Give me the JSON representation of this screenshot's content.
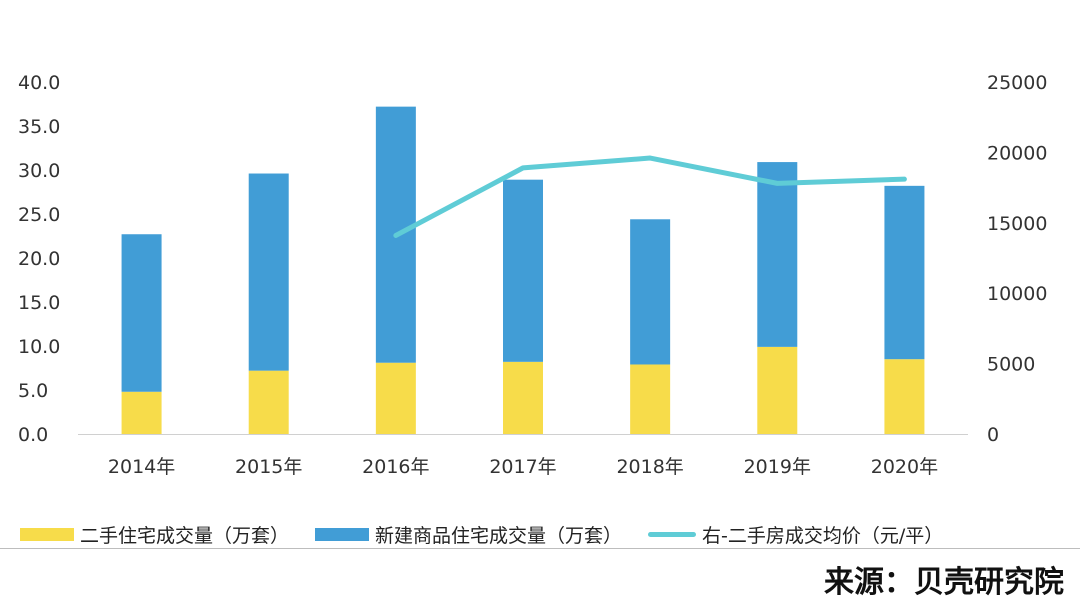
{
  "chart_data": {
    "type": "bar",
    "categories": [
      "2014年",
      "2015年",
      "2016年",
      "2017年",
      "2018年",
      "2019年",
      "2020年"
    ],
    "series": [
      {
        "name": "二手住宅成交量（万套）",
        "type": "bar",
        "axis": "left",
        "stack": "volume",
        "values": [
          4.8,
          7.2,
          8.1,
          8.2,
          7.9,
          9.9,
          8.5
        ]
      },
      {
        "name": "新建商品住宅成交量（万套）",
        "type": "bar",
        "axis": "left",
        "stack": "volume",
        "values": [
          17.9,
          22.4,
          29.1,
          20.7,
          16.5,
          21.0,
          19.7
        ]
      },
      {
        "name": "右-二手房成交均价（元/平）",
        "type": "line",
        "axis": "right",
        "values": [
          null,
          null,
          14100,
          18900,
          19600,
          17800,
          18100
        ]
      }
    ],
    "y_left": {
      "ticks": [
        "0.0",
        "5.0",
        "10.0",
        "15.0",
        "20.0",
        "25.0",
        "30.0",
        "35.0",
        "40.0"
      ],
      "ylim": [
        0,
        40
      ]
    },
    "y_right": {
      "ticks": [
        "0",
        "5000",
        "10000",
        "15000",
        "20000",
        "25000"
      ],
      "ylim": [
        0,
        25000
      ]
    },
    "grid": false,
    "legend_position": "bottom",
    "colors": {
      "used_home": "#F7DC4A",
      "new_home": "#419DD6",
      "price_line": "#5FCCD6"
    }
  },
  "legend": {
    "items": [
      {
        "label": "二手住宅成交量（万套）",
        "kind": "bar",
        "color": "#F7DC4A"
      },
      {
        "label": "新建商品住宅成交量（万套）",
        "kind": "bar",
        "color": "#419DD6"
      },
      {
        "label": "右-二手房成交均价（元/平）",
        "kind": "line",
        "color": "#5FCCD6"
      }
    ]
  },
  "source": "来源：贝壳研究院"
}
